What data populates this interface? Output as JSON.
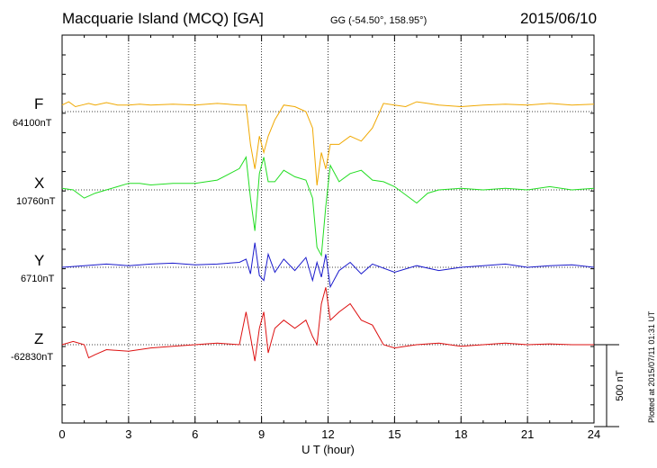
{
  "header": {
    "station": "Macquarie Island (MCQ)  [GA]",
    "coords": "GG (-54.50°, 158.95°)",
    "date": "2015/06/10"
  },
  "plotted_note": "Plotted at 2015/07/11 01:31  UT",
  "colors": {
    "F": "#f0a800",
    "X": "#22dd22",
    "Y": "#1a1acc",
    "Z": "#dd1111",
    "axis": "#000000"
  },
  "chart_data": {
    "type": "line",
    "xlabel": "U T (hour)",
    "xlim": [
      0,
      24
    ],
    "xticks": [
      0,
      3,
      6,
      9,
      12,
      15,
      18,
      21,
      24
    ],
    "scale_bar": {
      "value": 500,
      "label": "500 nT"
    },
    "series": [
      {
        "name": "F",
        "baseline": 64100,
        "baseline_label": "64100nT",
        "x": [
          0,
          0.3,
          0.6,
          0.9,
          1.2,
          1.5,
          2,
          2.5,
          3,
          3.5,
          4,
          5,
          6,
          7,
          7.5,
          8,
          8.3,
          8.5,
          8.7,
          8.9,
          9.1,
          9.3,
          9.6,
          10,
          10.5,
          11,
          11.3,
          11.5,
          11.7,
          11.9,
          12.1,
          12.5,
          13,
          13.5,
          14,
          14.5,
          15,
          15.5,
          16,
          16.5,
          17,
          18,
          19,
          20,
          21,
          22,
          23,
          24
        ],
        "y": [
          40,
          60,
          30,
          40,
          50,
          40,
          55,
          40,
          40,
          45,
          40,
          45,
          40,
          50,
          45,
          40,
          40,
          -200,
          -350,
          -150,
          -250,
          -150,
          -50,
          40,
          30,
          0,
          -100,
          -450,
          -250,
          -350,
          -200,
          -200,
          -150,
          -180,
          -100,
          50,
          40,
          30,
          60,
          50,
          40,
          30,
          40,
          45,
          40,
          50,
          40,
          45
        ]
      },
      {
        "name": "X",
        "baseline": 10760,
        "baseline_label": "10760nT",
        "x": [
          0,
          0.5,
          1,
          1.5,
          2,
          2.5,
          3,
          3.5,
          4,
          5,
          6,
          7,
          8,
          8.3,
          8.5,
          8.7,
          8.9,
          9.1,
          9.3,
          9.6,
          10,
          10.5,
          11,
          11.3,
          11.5,
          11.7,
          11.9,
          12.1,
          12.5,
          13,
          13.5,
          14,
          14.5,
          15,
          15.5,
          16,
          16.5,
          17,
          18,
          19,
          20,
          21,
          22,
          23,
          24
        ],
        "y": [
          10,
          0,
          -50,
          -20,
          0,
          20,
          40,
          40,
          30,
          40,
          40,
          60,
          130,
          200,
          -50,
          -250,
          100,
          200,
          50,
          50,
          120,
          80,
          60,
          -50,
          -350,
          -400,
          -100,
          150,
          50,
          100,
          120,
          60,
          50,
          20,
          -30,
          -80,
          -20,
          0,
          10,
          0,
          10,
          0,
          20,
          0,
          10
        ]
      },
      {
        "name": "Y",
        "baseline": 6710,
        "baseline_label": "6710nT",
        "x": [
          0,
          1,
          2,
          3,
          4,
          5,
          6,
          7,
          8,
          8.3,
          8.5,
          8.7,
          8.9,
          9.1,
          9.3,
          9.6,
          10,
          10.5,
          11,
          11.3,
          11.5,
          11.7,
          11.9,
          12.1,
          12.5,
          13,
          13.5,
          14,
          15,
          16,
          17,
          18,
          19,
          20,
          21,
          22,
          23,
          24
        ],
        "y": [
          0,
          10,
          20,
          10,
          20,
          25,
          15,
          20,
          30,
          50,
          -40,
          150,
          -50,
          -80,
          80,
          -30,
          50,
          -20,
          60,
          -80,
          30,
          -60,
          80,
          -120,
          -20,
          30,
          -40,
          20,
          -30,
          10,
          -20,
          0,
          10,
          20,
          0,
          10,
          15,
          0
        ]
      },
      {
        "name": "Z",
        "baseline": -62830,
        "baseline_label": "-62830nT",
        "x": [
          0,
          0.5,
          1,
          1.2,
          1.5,
          2,
          3,
          4,
          5,
          6,
          7,
          8,
          8.3,
          8.5,
          8.7,
          8.9,
          9.1,
          9.3,
          9.6,
          10,
          10.5,
          11,
          11.3,
          11.5,
          11.7,
          11.9,
          12.1,
          12.5,
          13,
          13.5,
          14,
          14.5,
          15,
          15.5,
          16,
          17,
          18,
          19,
          20,
          21,
          22,
          23,
          24
        ],
        "y": [
          0,
          20,
          0,
          -80,
          -60,
          -30,
          -40,
          -20,
          -10,
          0,
          10,
          0,
          200,
          50,
          -100,
          100,
          200,
          -50,
          100,
          150,
          100,
          150,
          50,
          0,
          250,
          350,
          150,
          200,
          250,
          150,
          120,
          0,
          -20,
          -10,
          0,
          10,
          -10,
          0,
          10,
          0,
          5,
          0,
          0
        ]
      }
    ]
  }
}
